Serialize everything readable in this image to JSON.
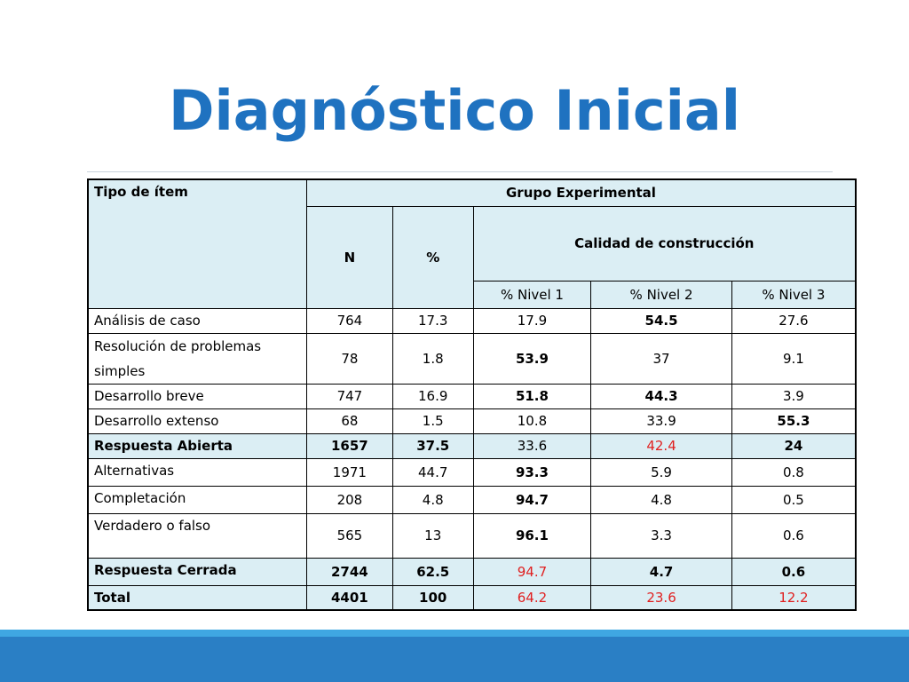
{
  "title": "Diagnóstico Inicial",
  "colors": {
    "title": "#1f72c0",
    "header_fill": "#dbeef4",
    "highlight_red": "#e02020",
    "footer_bar": "#2a7fc5"
  },
  "table": {
    "h_tipo": "Tipo de ítem",
    "h_grupo": "Grupo Experimental",
    "h_n": "N",
    "h_pct": "%",
    "h_calidad": "Calidad de construcción",
    "h_n1": "% Nivel 1",
    "h_n2": "% Nivel 2",
    "h_n3": "% Nivel 3",
    "rows": [
      {
        "label": "Análisis de caso",
        "n": "764",
        "pct": "17.3",
        "n1": "17.9",
        "n2": "54.5",
        "n3": "27.6"
      },
      {
        "label_a": "Resolución de problemas",
        "label_b": "simples",
        "n": "78",
        "pct": "1.8",
        "n1": "53.9",
        "n2": "37",
        "n3": "9.1"
      },
      {
        "label": "Desarrollo breve",
        "n": "747",
        "pct": "16.9",
        "n1": "51.8",
        "n2": "44.3",
        "n3": "3.9"
      },
      {
        "label": "Desarrollo extenso",
        "n": "68",
        "pct": "1.5",
        "n1": "10.8",
        "n2": "33.9",
        "n3": "55.3"
      },
      {
        "label": "Respuesta Abierta",
        "n": "1657",
        "pct": "37.5",
        "n1": "33.6",
        "n2": "42.4",
        "n3": "24"
      },
      {
        "label": "Alternativas",
        "n": "1971",
        "pct": "44.7",
        "n1": "93.3",
        "n2": "5.9",
        "n3": "0.8"
      },
      {
        "label": "Completación",
        "n": "208",
        "pct": "4.8",
        "n1": "94.7",
        "n2": "4.8",
        "n3": "0.5"
      },
      {
        "label": "Verdadero o falso",
        "n": "565",
        "pct": "13",
        "n1": "96.1",
        "n2": "3.3",
        "n3": "0.6"
      },
      {
        "label": "Respuesta Cerrada",
        "n": "2744",
        "pct": "62.5",
        "n1": "94.7",
        "n2": "4.7",
        "n3": "0.6"
      },
      {
        "label": "Total",
        "n": "4401",
        "pct": "100",
        "n1": "64.2",
        "n2": "23.6",
        "n3": "12.2"
      }
    ]
  }
}
